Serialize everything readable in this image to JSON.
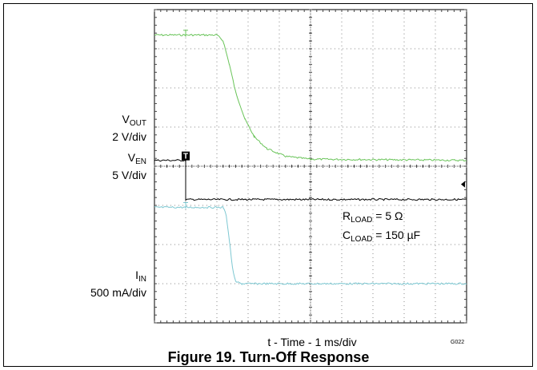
{
  "chart_data": {
    "type": "line",
    "title": "Figure 19. Turn-Off Response",
    "xlabel": "t - Time - 1 ms/div",
    "code": "G022",
    "grid": true,
    "xlim": [
      0,
      10
    ],
    "divisions": {
      "x": 10,
      "y": 8
    },
    "series": [
      {
        "name": "VOUT",
        "scale": "2 V/div",
        "color": "#6ac45a",
        "points": [
          [
            0,
            7.35
          ],
          [
            1,
            7.35
          ],
          [
            2,
            7.35
          ],
          [
            2.2,
            7.2
          ],
          [
            2.4,
            6.6
          ],
          [
            2.6,
            5.9
          ],
          [
            2.9,
            5.2
          ],
          [
            3.2,
            4.75
          ],
          [
            3.6,
            4.45
          ],
          [
            4.2,
            4.25
          ],
          [
            5,
            4.18
          ],
          [
            10,
            4.15
          ]
        ]
      },
      {
        "name": "VEN",
        "scale": "5 V/div",
        "color": "#000000",
        "points": [
          [
            0,
            4.15
          ],
          [
            1,
            4.15
          ],
          [
            1,
            3.15
          ],
          [
            10,
            3.15
          ]
        ]
      },
      {
        "name": "IN",
        "scale": "500 mA/div",
        "color": "#7ec8d2",
        "points": [
          [
            0,
            2.95
          ],
          [
            1,
            2.95
          ],
          [
            2.2,
            2.95
          ],
          [
            2.3,
            2.75
          ],
          [
            2.4,
            2.1
          ],
          [
            2.5,
            1.4
          ],
          [
            2.6,
            1.05
          ],
          [
            2.8,
            1.0
          ],
          [
            10,
            1.0
          ]
        ]
      }
    ]
  },
  "labels": {
    "vout": {
      "main": "V",
      "sub": "OUT",
      "scale": "2 V/div"
    },
    "ven": {
      "main": "V",
      "sub": "EN",
      "scale": "5 V/div"
    },
    "iin": {
      "main": "I",
      "sub": "IN",
      "scale": "500 mA/div"
    }
  },
  "annotations": {
    "rload": {
      "main": "R",
      "sub": "LOAD",
      "value": " = 5 Ω"
    },
    "cload": {
      "main": "C",
      "sub": "LOAD",
      "value": " = 150 µF"
    }
  },
  "trigger_marker": "T"
}
